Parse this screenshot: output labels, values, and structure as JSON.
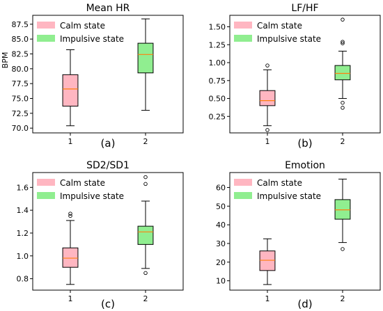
{
  "colors": {
    "calm": "#ffb6c1",
    "impulsive": "#90ee90",
    "median": "#ff7f0e",
    "axis": "#000000"
  },
  "chart_data": [
    {
      "type": "box",
      "title": "Mean HR",
      "ylabel": "BPM",
      "panel_label": "(a)",
      "ylim": [
        69.2,
        89.0
      ],
      "yticks": [
        "70.0",
        "72.5",
        "75.0",
        "77.5",
        "80.0",
        "82.5",
        "85.0",
        "87.5"
      ],
      "categories": [
        "1",
        "2"
      ],
      "legend": [
        "Calm state",
        "Impulsive state"
      ],
      "legend_position": "upper-left",
      "series": [
        {
          "name": "Calm state",
          "x": 1,
          "whisker_low": 70.4,
          "q1": 73.7,
          "median": 76.6,
          "q3": 79.0,
          "whisker_high": 83.2,
          "outliers": []
        },
        {
          "name": "Impulsive state",
          "x": 2,
          "whisker_low": 73.0,
          "q1": 79.3,
          "median": 82.4,
          "q3": 84.3,
          "whisker_high": 88.4,
          "outliers": []
        }
      ]
    },
    {
      "type": "box",
      "title": "LF/HF",
      "ylabel": "",
      "panel_label": "(b)",
      "ylim": [
        0.02,
        1.66
      ],
      "yticks": [
        "0.25",
        "0.50",
        "0.75",
        "1.00",
        "1.25",
        "1.50"
      ],
      "categories": [
        "1",
        "2"
      ],
      "legend": [
        "Calm state",
        "Impulsive state"
      ],
      "legend_position": "upper-left",
      "series": [
        {
          "name": "Calm state",
          "x": 1,
          "whisker_low": 0.12,
          "q1": 0.4,
          "median": 0.47,
          "q3": 0.61,
          "whisker_high": 0.9,
          "outliers": [
            0.96,
            0.06
          ]
        },
        {
          "name": "Impulsive state",
          "x": 2,
          "whisker_low": 0.5,
          "q1": 0.76,
          "median": 0.85,
          "q3": 0.96,
          "whisker_high": 1.16,
          "outliers": [
            1.6,
            1.29,
            1.27,
            0.44,
            0.37
          ]
        }
      ]
    },
    {
      "type": "box",
      "title": "SD2/SD1",
      "ylabel": "",
      "panel_label": "(c)",
      "ylim": [
        0.7,
        1.73
      ],
      "yticks": [
        "0.8",
        "1.0",
        "1.2",
        "1.4",
        "1.6"
      ],
      "categories": [
        "1",
        "2"
      ],
      "legend": [
        "Calm state",
        "Impulsive state"
      ],
      "legend_position": "upper-left",
      "series": [
        {
          "name": "Calm state",
          "x": 1,
          "whisker_low": 0.75,
          "q1": 0.9,
          "median": 0.98,
          "q3": 1.07,
          "whisker_high": 1.31,
          "outliers": [
            1.37,
            1.35
          ]
        },
        {
          "name": "Impulsive state",
          "x": 2,
          "whisker_low": 0.89,
          "q1": 1.1,
          "median": 1.21,
          "q3": 1.26,
          "whisker_high": 1.48,
          "outliers": [
            1.69,
            1.63,
            0.85
          ]
        }
      ]
    },
    {
      "type": "box",
      "title": "Emotion",
      "ylabel": "",
      "panel_label": "(d)",
      "ylim": [
        5,
        68
      ],
      "yticks": [
        "10",
        "20",
        "30",
        "40",
        "50",
        "60"
      ],
      "categories": [
        "1",
        "2"
      ],
      "legend": [
        "Calm state",
        "Impulsive state"
      ],
      "legend_position": "upper-left",
      "series": [
        {
          "name": "Calm state",
          "x": 1,
          "whisker_low": 8,
          "q1": 15.5,
          "median": 21,
          "q3": 26,
          "whisker_high": 32.5,
          "outliers": []
        },
        {
          "name": "Impulsive state",
          "x": 2,
          "whisker_low": 30.5,
          "q1": 43,
          "median": 48,
          "q3": 53.5,
          "whisker_high": 64.5,
          "outliers": [
            27
          ]
        }
      ]
    }
  ]
}
